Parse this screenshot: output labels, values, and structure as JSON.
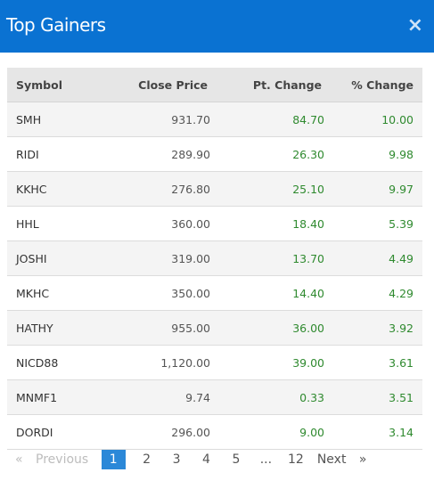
{
  "header": {
    "title": "Top Gainers",
    "close_glyph": "×"
  },
  "table": {
    "columns": [
      "Symbol",
      "Close Price",
      "Pt. Change",
      "% Change"
    ],
    "rows": [
      [
        "SMH",
        "931.70",
        "84.70",
        "10.00"
      ],
      [
        "RIDI",
        "289.90",
        "26.30",
        "9.98"
      ],
      [
        "KKHC",
        "276.80",
        "25.10",
        "9.97"
      ],
      [
        "HHL",
        "360.00",
        "18.40",
        "5.39"
      ],
      [
        "JOSHI",
        "319.00",
        "13.70",
        "4.49"
      ],
      [
        "MKHC",
        "350.00",
        "14.40",
        "4.29"
      ],
      [
        "HATHY",
        "955.00",
        "36.00",
        "3.92"
      ],
      [
        "NICD88",
        "1,120.00",
        "39.00",
        "3.61"
      ],
      [
        "MNMF1",
        "9.74",
        "0.33",
        "3.51"
      ],
      [
        "DORDI",
        "296.00",
        "9.00",
        "3.14"
      ]
    ]
  },
  "pagination": {
    "first_glyph": "«",
    "previous_label": "Previous",
    "pages": [
      "1",
      "2",
      "3",
      "4",
      "5",
      "...",
      "12"
    ],
    "current_page": "1",
    "next_label": "Next",
    "last_glyph": "»"
  },
  "colors": {
    "header": "#0a72d2",
    "positive": "#2f8a2f",
    "active_page": "#2b88d8"
  }
}
